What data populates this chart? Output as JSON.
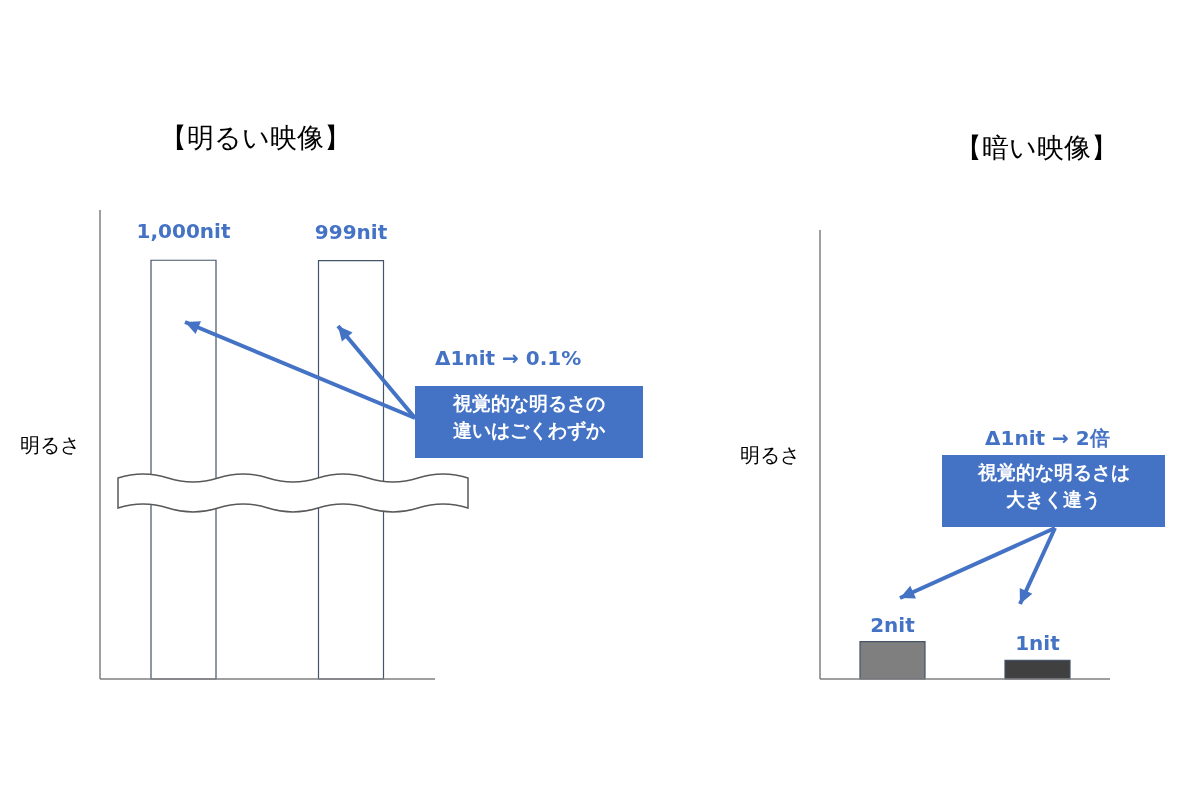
{
  "chart_data": [
    {
      "type": "bar",
      "title": "【明るい映像】",
      "ylabel": "明るさ",
      "categories": [
        null,
        null
      ],
      "values": [
        1000,
        999
      ],
      "color": "#ffffff",
      "value_labels": [
        "1,000nit",
        "999nit"
      ],
      "annotations": [
        "Δ1nit → 0.1%",
        "視覚的な明るさの違いはごくわずか"
      ]
    },
    {
      "type": "bar",
      "title": "【暗い映像】",
      "ylabel": "明るさ",
      "categories": [
        null,
        null
      ],
      "values": [
        2,
        1
      ],
      "colors": [
        "#7f7f7f",
        "#404040"
      ],
      "value_labels": [
        "2nit",
        "1nit"
      ],
      "annotations": [
        "Δ1nit → 2倍",
        "視覚的な明るさは大きく違う"
      ]
    }
  ]
}
